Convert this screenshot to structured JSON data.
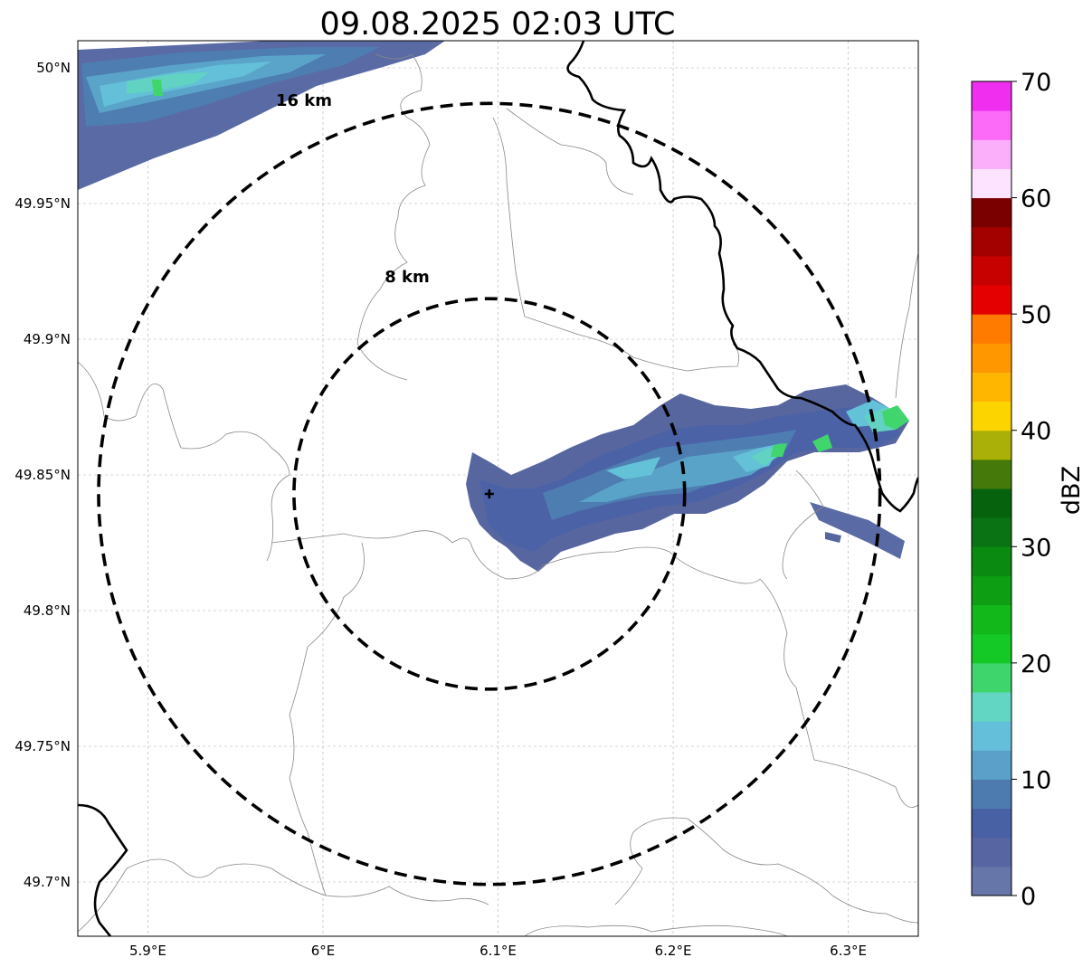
{
  "title": "09.08.2025 02:03 UTC",
  "map": {
    "lon_range": [
      5.86,
      6.34
    ],
    "lat_range": [
      49.68,
      50.01
    ],
    "x_ticks": [
      {
        "value": 5.9,
        "label": "5.9°E"
      },
      {
        "value": 6.0,
        "label": "6°E"
      },
      {
        "value": 6.1,
        "label": "6.1°E"
      },
      {
        "value": 6.2,
        "label": "6.2°E"
      },
      {
        "value": 6.3,
        "label": "6.3°E"
      }
    ],
    "y_ticks": [
      {
        "value": 50.0,
        "label": "50°N"
      },
      {
        "value": 49.95,
        "label": "49.95°N"
      },
      {
        "value": 49.9,
        "label": "49.9°N"
      },
      {
        "value": 49.85,
        "label": "49.85°N"
      },
      {
        "value": 49.8,
        "label": "49.8°N"
      },
      {
        "value": 49.75,
        "label": "49.75°N"
      },
      {
        "value": 49.7,
        "label": "49.7°N"
      }
    ],
    "grid": true,
    "radar_site": {
      "lon": 6.095,
      "lat": 49.843
    },
    "range_rings": [
      {
        "radius_km": 8,
        "label": "8 km"
      },
      {
        "radius_km": 16,
        "label": "16 km"
      }
    ]
  },
  "colorbar": {
    "label": "dBZ",
    "min": 0,
    "max": 70,
    "ticks": [
      "0",
      "10",
      "20",
      "30",
      "40",
      "50",
      "60",
      "70"
    ],
    "colors": [
      "#6676a8",
      "#5766a2",
      "#4861a4",
      "#4d7bb0",
      "#5aa0c8",
      "#64c0da",
      "#62d5c3",
      "#3fd56d",
      "#14c925",
      "#12b81a",
      "#0e9e13",
      "#0b8a12",
      "#0a7414",
      "#07620e",
      "#457a0a",
      "#aab007",
      "#fcd500",
      "#feb600",
      "#ff9700",
      "#ff7b00",
      "#e50000",
      "#c70000",
      "#a30000",
      "#7a0000",
      "#fde3ff",
      "#fbaef9",
      "#fb6bf8",
      "#f02ef0"
    ]
  }
}
